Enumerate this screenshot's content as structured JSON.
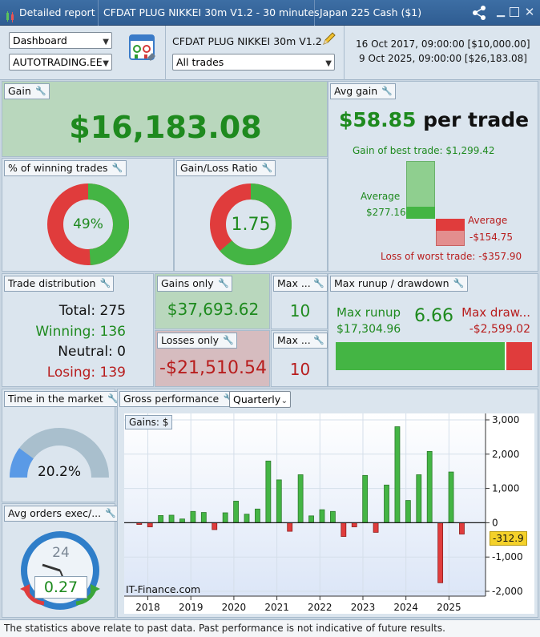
{
  "titlebar": {
    "app": "Detailed report",
    "strategy": "CFDAT PLUG NIKKEI 30m V1.2 - 30 minutes",
    "instrument": "Japan 225 Cash ($1)"
  },
  "toolbar": {
    "view_select": "Dashboard",
    "account_select": "AUTOTRADING.EE",
    "strategy_name": "CFDAT PLUG NIKKEI 30m V1.2",
    "trades_filter": "All trades",
    "start": "16 Oct 2017, 09:00:00  [$10,000.00]",
    "end": "9 Oct 2025, 09:00:00  [$26,183.08]"
  },
  "gain": {
    "title": "Gain",
    "value": "$16,183.08"
  },
  "avg_gain": {
    "title": "Avg gain",
    "value": "$58.85",
    "suffix": "per trade",
    "best": "Gain of best trade: $1,299.42",
    "avg_win_label": "Average",
    "avg_win": "$277.16",
    "avg_loss_label": "Average",
    "avg_loss": "-$154.75",
    "worst": "Loss of worst trade: -$357.90",
    "avg_win_level": 0.21,
    "avg_loss_level": 0.43
  },
  "winning": {
    "title": "% of winning trades",
    "value": "49%",
    "fraction": 0.49
  },
  "ratio": {
    "title": "Gain/Loss Ratio",
    "value": "1.75",
    "fraction": 0.636
  },
  "distribution": {
    "title": "Trade distribution",
    "total": "Total: 275",
    "winning": "Winning: 136",
    "neutral": "Neutral: 0",
    "losing": "Losing: 139"
  },
  "gains_only": {
    "title": "Gains only",
    "value": "$37,693.62"
  },
  "losses_only": {
    "title": "Losses only",
    "value": "-$21,510.54"
  },
  "max_wins": {
    "title": "Max ...",
    "value": "10"
  },
  "max_losses": {
    "title": "Max ...",
    "value": "10"
  },
  "runup": {
    "title": "Max runup / drawdown",
    "runup_label": "Max runup",
    "runup_value": "$17,304.96",
    "ratio": "6.66",
    "dd_label": "Max draw...",
    "dd_value": "-$2,599.02",
    "runup_fraction": 0.87
  },
  "time_market": {
    "title": "Time in the market",
    "value": "20.2%",
    "fraction": 0.202
  },
  "avg_orders": {
    "title": "Avg orders exec/...",
    "value": "0.27",
    "dial": "24"
  },
  "gross": {
    "title": "Gross performance",
    "period": "Quarterly"
  },
  "colors": {
    "green": "#44b544",
    "red": "#e03c3c",
    "gain_bg": "#b9d7bd",
    "loss_bg": "#d6bcbf"
  },
  "chart_data": {
    "type": "bar",
    "title": "Gains: $",
    "x": [
      2017.8,
      2018.05,
      2018.3,
      2018.55,
      2018.8,
      2019.05,
      2019.3,
      2019.55,
      2019.8,
      2020.05,
      2020.3,
      2020.55,
      2020.8,
      2021.05,
      2021.3,
      2021.55,
      2021.8,
      2022.05,
      2022.3,
      2022.55,
      2022.8,
      2023.05,
      2023.3,
      2023.55,
      2023.8,
      2024.05,
      2024.3,
      2024.55,
      2024.8,
      2025.05,
      2025.3,
      2025.55
    ],
    "values": [
      -50,
      -120,
      210,
      220,
      110,
      330,
      300,
      -200,
      290,
      630,
      250,
      400,
      1800,
      1250,
      -250,
      1400,
      200,
      380,
      330,
      -400,
      -120,
      1380,
      -280,
      1100,
      2800,
      650,
      1400,
      2080,
      -1750,
      1480,
      -330,
      0
    ],
    "xticks": [
      "2018",
      "2019",
      "2020",
      "2021",
      "2022",
      "2023",
      "2024",
      "2025"
    ],
    "xtick_values": [
      2018,
      2019,
      2020,
      2021,
      2022,
      2023,
      2024,
      2025
    ],
    "yticks": [
      "3,000",
      "2,000",
      "1,000",
      "0",
      "-1,000",
      "-2,000"
    ],
    "ytick_values": [
      3000,
      2000,
      1000,
      0,
      -1000,
      -2000
    ],
    "ylim": [
      -2000,
      3000
    ],
    "xlim": [
      2017.45,
      2025.85
    ],
    "last_value": "-312.9",
    "watermark": "IT-Finance.com",
    "grid": true
  },
  "footer": "The statistics above relate to past data. Past performance is not indicative of future results."
}
